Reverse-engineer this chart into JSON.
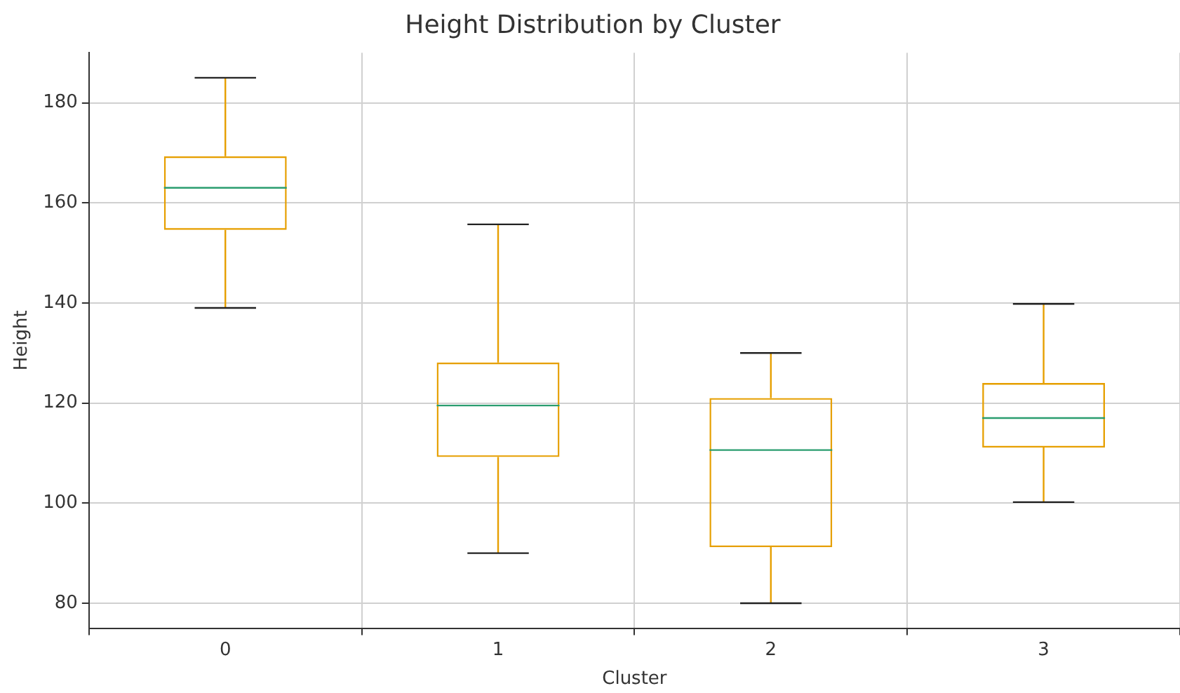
{
  "chart_data": {
    "type": "box",
    "title": "Height Distribution by Cluster",
    "xlabel": "Cluster",
    "ylabel": "Height",
    "categories": [
      "0",
      "1",
      "2",
      "3"
    ],
    "boxes": [
      {
        "low": 139,
        "q1": 154.6,
        "median": 163,
        "q3": 169.3,
        "high": 185
      },
      {
        "low": 90,
        "q1": 109.2,
        "median": 119.5,
        "q3": 128.1,
        "high": 155.7
      },
      {
        "low": 80,
        "q1": 91.2,
        "median": 110.6,
        "q3": 121,
        "high": 130
      },
      {
        "low": 100.2,
        "q1": 111.1,
        "median": 117,
        "q3": 124,
        "high": 139.8
      }
    ],
    "color": "#e69f00",
    "ylim": [
      75,
      190
    ],
    "yticks": [
      80,
      100,
      120,
      140,
      160,
      180
    ],
    "grid": true
  }
}
